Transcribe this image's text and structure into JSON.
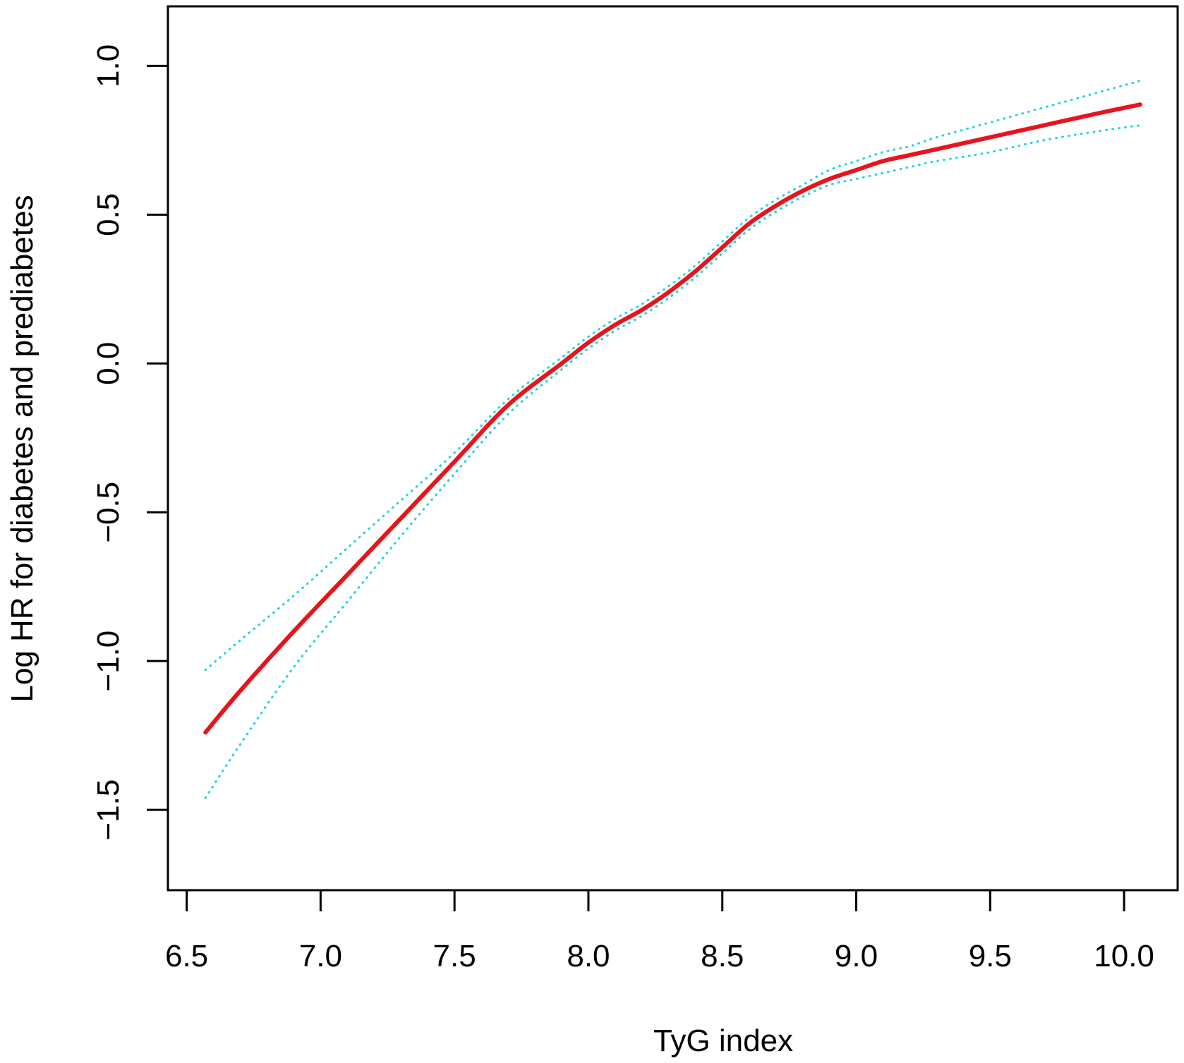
{
  "chart_data": {
    "type": "line",
    "title": "",
    "xlabel": "TyG index",
    "ylabel": "Log HR for diabetes and prediabetes",
    "xlim": [
      6.43,
      10.2
    ],
    "ylim": [
      -1.77,
      1.2
    ],
    "x_ticks": [
      6.5,
      7.0,
      7.5,
      8.0,
      8.5,
      9.0,
      9.5,
      10.0
    ],
    "x_tick_labels": [
      "6.5",
      "7.0",
      "7.5",
      "8.0",
      "8.5",
      "9.0",
      "9.5",
      "10.0"
    ],
    "y_ticks": [
      -1.5,
      -1.0,
      -0.5,
      0.0,
      0.5,
      1.0
    ],
    "y_tick_labels": [
      "−1.5",
      "−1.0",
      "−0.5",
      "0.0",
      "0.5",
      "1.0"
    ],
    "grid": false,
    "legend": "none",
    "series": [
      {
        "role": "estimate",
        "color": "#e8141b",
        "style": "solid",
        "x": [
          6.57,
          6.7,
          6.9,
          7.1,
          7.3,
          7.5,
          7.7,
          7.9,
          8.0,
          8.1,
          8.2,
          8.3,
          8.4,
          8.5,
          8.6,
          8.7,
          8.8,
          8.9,
          9.0,
          9.1,
          9.2,
          9.3,
          9.5,
          9.7,
          9.9,
          10.06
        ],
        "y": [
          -1.24,
          -1.1,
          -0.9,
          -0.71,
          -0.52,
          -0.33,
          -0.14,
          0.0,
          0.07,
          0.13,
          0.18,
          0.24,
          0.31,
          0.39,
          0.47,
          0.53,
          0.58,
          0.62,
          0.65,
          0.68,
          0.7,
          0.72,
          0.76,
          0.8,
          0.84,
          0.87
        ]
      },
      {
        "role": "upper-ci",
        "color": "#22d3e4",
        "style": "dotted",
        "x": [
          6.57,
          6.7,
          6.9,
          7.1,
          7.3,
          7.5,
          7.7,
          7.9,
          8.0,
          8.1,
          8.2,
          8.3,
          8.4,
          8.5,
          8.6,
          8.7,
          8.8,
          8.9,
          9.0,
          9.1,
          9.2,
          9.3,
          9.5,
          9.7,
          9.9,
          10.06
        ],
        "y": [
          -1.03,
          -0.93,
          -0.78,
          -0.62,
          -0.46,
          -0.3,
          -0.12,
          0.02,
          0.09,
          0.15,
          0.2,
          0.26,
          0.33,
          0.41,
          0.49,
          0.55,
          0.6,
          0.65,
          0.68,
          0.71,
          0.73,
          0.76,
          0.81,
          0.86,
          0.91,
          0.95
        ]
      },
      {
        "role": "lower-ci",
        "color": "#22d3e4",
        "style": "dotted",
        "x": [
          6.57,
          6.7,
          6.9,
          7.1,
          7.3,
          7.5,
          7.7,
          7.9,
          8.0,
          8.1,
          8.2,
          8.3,
          8.4,
          8.5,
          8.6,
          8.7,
          8.8,
          8.9,
          9.0,
          9.1,
          9.2,
          9.3,
          9.5,
          9.7,
          9.9,
          10.06
        ],
        "y": [
          -1.46,
          -1.28,
          -1.02,
          -0.8,
          -0.58,
          -0.37,
          -0.17,
          -0.02,
          0.05,
          0.11,
          0.16,
          0.22,
          0.29,
          0.37,
          0.45,
          0.51,
          0.56,
          0.6,
          0.62,
          0.64,
          0.66,
          0.68,
          0.71,
          0.75,
          0.78,
          0.8
        ]
      }
    ]
  }
}
